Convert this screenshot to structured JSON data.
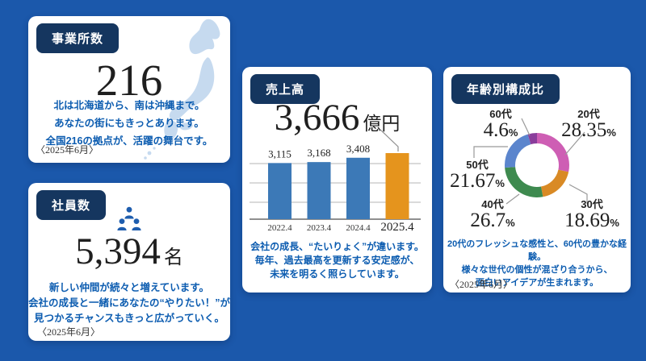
{
  "page": {
    "background_color": "#1b58ab"
  },
  "theme": {
    "card_background": "#ffffff",
    "title_badge_color": "#15365f",
    "accent_text_color": "#0c5cb0",
    "map_color": "#c6daef",
    "people_icon_color": "#1e5dae"
  },
  "cards": {
    "offices": {
      "title": "事業所数",
      "value": "216",
      "desc": [
        "北は北海道から、南は沖縄まで。",
        "あなたの街にもきっとあります。",
        "全国216の拠点が、活躍の舞台です。"
      ],
      "date": "〈2025年6月〉",
      "background_icon": "japan-map"
    },
    "employees": {
      "title": "社員数",
      "value": "5,394",
      "unit": "名",
      "icon": "people-pyramid-icon",
      "desc": [
        "新しい仲間が続々と増えています。",
        "会社の成長と一緒にあなたの“やりたい！”が",
        "見つかるチャンスもきっと広がっていく。"
      ],
      "date": "〈2025年6月〉"
    },
    "sales": {
      "title": "売上高",
      "value": "3,666",
      "unit": "億円",
      "desc": [
        "会社の成長、“たいりょく”が違います。",
        "毎年、過去最高を更新する安定感が、",
        "未来を明るく照らしています。"
      ]
    },
    "age_mix": {
      "title": "年齢別構成比",
      "desc": [
        "20代のフレッシュな感性と、60代の豊かな経験。",
        "様々な世代の個性が混ざり合うから、",
        "面白いアイデアが生まれます。"
      ],
      "date": "〈2025年6月〉"
    }
  },
  "chart_data": [
    {
      "type": "bar",
      "title": "売上高",
      "categories": [
        "2022.4",
        "2023.4",
        "2024.4",
        "2025.4"
      ],
      "values": [
        3115,
        3168,
        3408,
        3666
      ],
      "value_labels": [
        "3,115",
        "3,168",
        "3,408"
      ],
      "highlight_index": 3,
      "highlight_value_label": "3,666",
      "unit": "億円",
      "bar_colors": [
        "#3c79b7",
        "#3c79b7",
        "#3c79b7",
        "#e5941d"
      ],
      "ylim": [
        0,
        3666
      ],
      "grid": true,
      "legend": false
    },
    {
      "type": "donut",
      "title": "年齢別構成比",
      "labels": [
        "20代",
        "30代",
        "40代",
        "50代",
        "60代"
      ],
      "values": [
        28.35,
        18.69,
        26.7,
        21.67,
        4.6
      ],
      "value_labels": [
        "28.35",
        "18.69",
        "26.7",
        "21.67",
        "4.6"
      ],
      "unit": "%",
      "colors": [
        "#ce5eb4",
        "#d98a25",
        "#3e8a4f",
        "#5b85cd",
        "#8a3d9b"
      ],
      "start_angle_deg": 0,
      "direction": "clockwise",
      "legend": false
    }
  ]
}
